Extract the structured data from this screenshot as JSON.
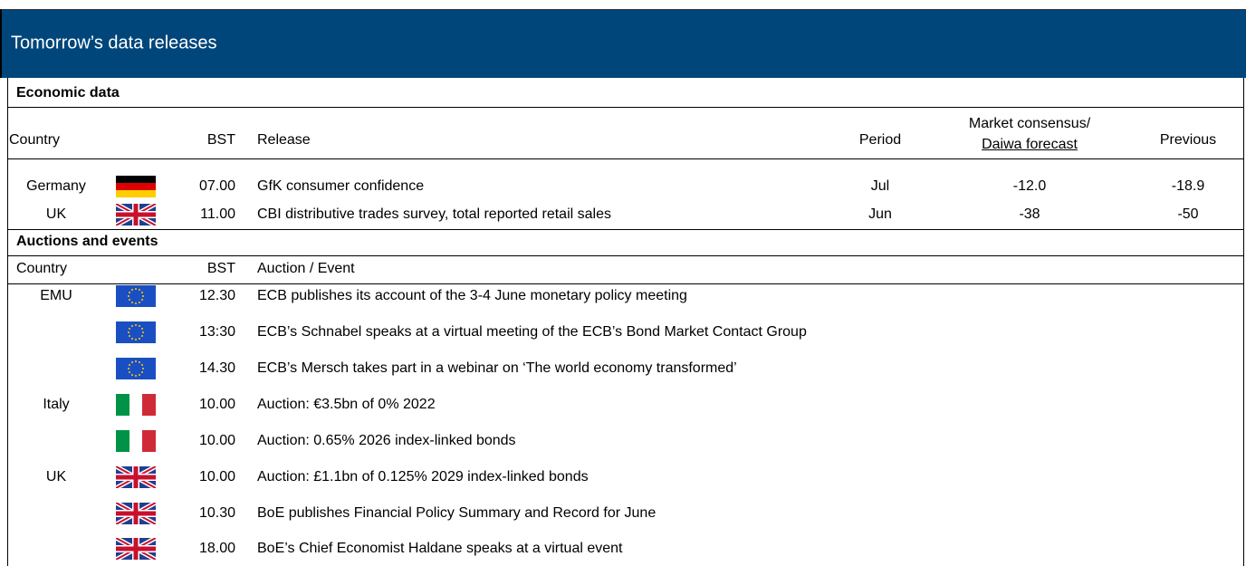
{
  "header": {
    "title": "Tomorrow’s data releases"
  },
  "economic": {
    "section": "Economic data",
    "columns": {
      "country": "Country",
      "bst": "BST",
      "release": "Release",
      "period": "Period",
      "consensus_line1": "Market consensus/",
      "consensus_line2": "Daiwa forecast",
      "previous": "Previous"
    },
    "rows": [
      {
        "country": "Germany",
        "bst": "07.00",
        "release": "GfK consumer confidence",
        "period": "Jul",
        "consensus": "-12.0",
        "previous": "-18.9"
      },
      {
        "country": "UK",
        "bst": "11.00",
        "release": "CBI distributive trades survey, total reported retail sales",
        "period": "Jun",
        "consensus": "-38",
        "previous": "-50"
      }
    ]
  },
  "events": {
    "section": "Auctions and events",
    "columns": {
      "country": "Country",
      "bst": "BST",
      "event": "Auction / Event"
    },
    "rows": [
      {
        "country": "EMU",
        "bst": "12.30",
        "event": "ECB publishes its account of the 3-4 June monetary policy meeting"
      },
      {
        "bst": "13:30",
        "event": "ECB’s Schnabel speaks at a virtual meeting of the ECB’s Bond Market Contact Group"
      },
      {
        "bst": "14.30",
        "event": "ECB’s Mersch takes part in a webinar on ‘The world economy transformed’"
      },
      {
        "country": "Italy",
        "bst": "10.00",
        "event": "Auction: €3.5bn of 0% 2022"
      },
      {
        "bst": "10.00",
        "event": "Auction: 0.65% 2026 index-linked bonds"
      },
      {
        "country": "UK",
        "bst": "10.00",
        "event": "Auction: £1.1bn of 0.125% 2029 index-linked bonds"
      },
      {
        "bst": "10.30",
        "event": "BoE publishes Financial Policy Summary and Record for June"
      },
      {
        "bst": "18.00",
        "event": "BoE’s Chief Economist Haldane speaks at a virtual event"
      }
    ]
  }
}
